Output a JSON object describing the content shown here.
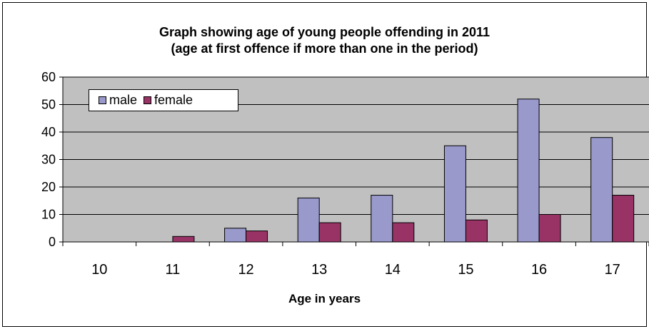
{
  "chart_data": {
    "type": "bar",
    "title_line1": "Graph showing age of young people offending in 2011",
    "title_line2": "(age at first offence if more than one in the period)",
    "xlabel": "Age in years",
    "ylabel": "",
    "categories": [
      "10",
      "11",
      "12",
      "13",
      "14",
      "15",
      "16",
      "17"
    ],
    "series": [
      {
        "name": "male",
        "values": [
          0,
          0,
          5,
          16,
          17,
          35,
          52,
          38
        ],
        "color": "#9999cc"
      },
      {
        "name": "female",
        "values": [
          0,
          2,
          4,
          7,
          7,
          8,
          10,
          17
        ],
        "color": "#993366"
      }
    ],
    "ylim": [
      0,
      60
    ],
    "yticks": [
      "0",
      "10",
      "20",
      "30",
      "40",
      "50",
      "60"
    ],
    "grid": true,
    "legend_position": "top-left",
    "plot_background": "#c0c0c0"
  }
}
